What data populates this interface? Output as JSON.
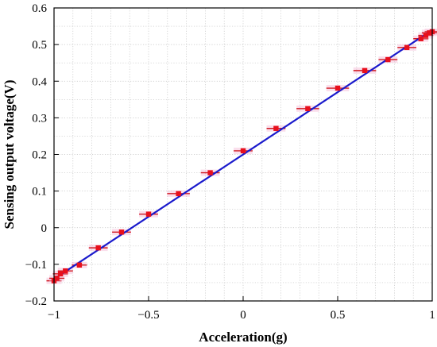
{
  "chart_data": {
    "type": "scatter",
    "title": "",
    "xlabel": "Acceleration(g)",
    "ylabel": "Sensing output voltage(V)",
    "xlim": [
      -1,
      1
    ],
    "ylim": [
      -0.2,
      0.6
    ],
    "x_ticks": [
      -1,
      -0.5,
      0,
      0.5,
      1
    ],
    "x_tick_labels": [
      "−1",
      "−0.5",
      "0",
      "0.5",
      "1"
    ],
    "y_ticks": [
      -0.2,
      -0.1,
      0,
      0.1,
      0.2,
      0.3,
      0.4,
      0.5,
      0.6
    ],
    "y_tick_labels": [
      "−0.2",
      "−0.1",
      "0",
      "0.1",
      "0.2",
      "0.3",
      "0.4",
      "0.5",
      "0.6"
    ],
    "grid": true,
    "grid_style": "dotted minor and major",
    "series": [
      {
        "kind": "scatter-with-xerror",
        "marker": "square",
        "color": "#e8101c",
        "points": [
          {
            "x": -1.0,
            "y": -0.145,
            "xerr": 0.04
          },
          {
            "x": -0.985,
            "y": -0.138,
            "xerr": 0.04
          },
          {
            "x": -0.966,
            "y": -0.126,
            "xerr": 0.04
          },
          {
            "x": -0.94,
            "y": -0.118,
            "xerr": 0.04
          },
          {
            "x": -0.866,
            "y": -0.102,
            "xerr": 0.04
          },
          {
            "x": -0.766,
            "y": -0.055,
            "xerr": 0.05
          },
          {
            "x": -0.643,
            "y": -0.012,
            "xerr": 0.05
          },
          {
            "x": -0.5,
            "y": 0.037,
            "xerr": 0.05
          },
          {
            "x": -0.342,
            "y": 0.093,
            "xerr": 0.06
          },
          {
            "x": -0.174,
            "y": 0.15,
            "xerr": 0.05
          },
          {
            "x": 0.0,
            "y": 0.21,
            "xerr": 0.05
          },
          {
            "x": 0.174,
            "y": 0.271,
            "xerr": 0.05
          },
          {
            "x": 0.342,
            "y": 0.325,
            "xerr": 0.06
          },
          {
            "x": 0.5,
            "y": 0.381,
            "xerr": 0.06
          },
          {
            "x": 0.643,
            "y": 0.429,
            "xerr": 0.06
          },
          {
            "x": 0.766,
            "y": 0.459,
            "xerr": 0.05
          },
          {
            "x": 0.866,
            "y": 0.492,
            "xerr": 0.05
          },
          {
            "x": 0.94,
            "y": 0.516,
            "xerr": 0.04
          },
          {
            "x": 0.966,
            "y": 0.525,
            "xerr": 0.04
          },
          {
            "x": 0.985,
            "y": 0.532,
            "xerr": 0.04
          },
          {
            "x": 1.0,
            "y": 0.535,
            "xerr": 0.04
          }
        ]
      },
      {
        "kind": "line",
        "fit": "linear",
        "color": "#1a1acc",
        "slope": 0.34,
        "intercept": 0.2,
        "x_range": [
          -1,
          1
        ]
      }
    ]
  }
}
